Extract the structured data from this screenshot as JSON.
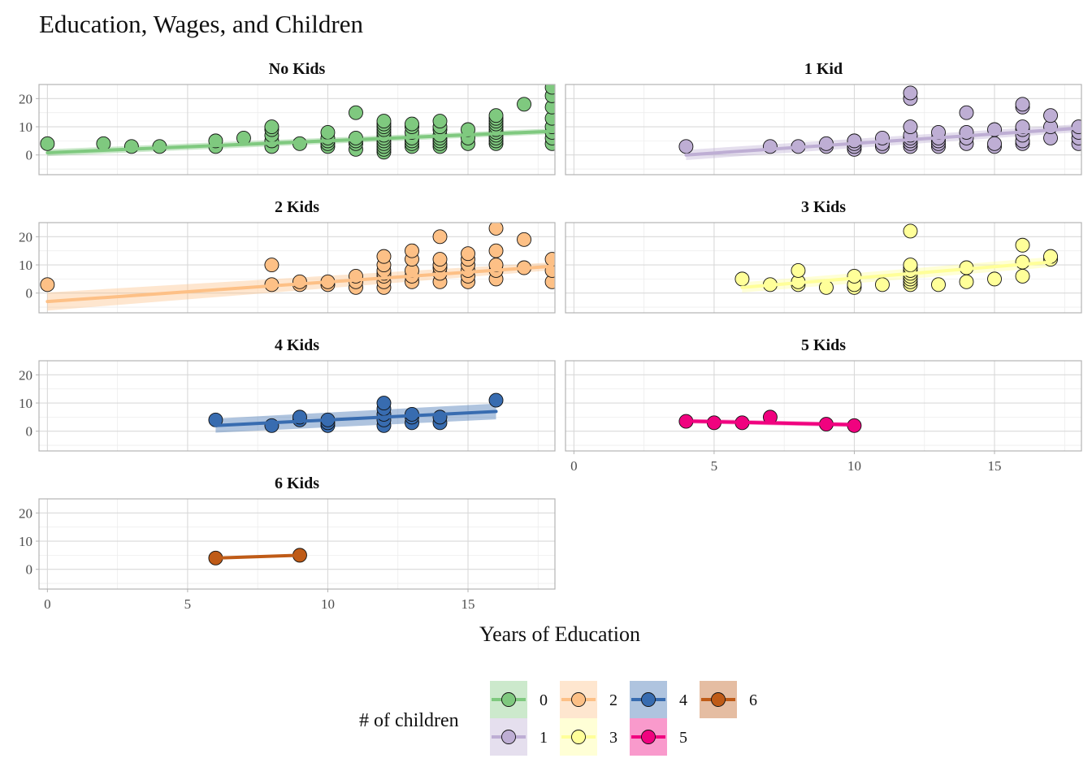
{
  "chart_data": {
    "type": "scatter",
    "title": "Education, Wages, and Children",
    "xlabel": "Years of Education",
    "ylabel": "",
    "xlim": [
      -0.3,
      18.1
    ],
    "ylim": [
      -7,
      25
    ],
    "xticks": [
      0,
      5,
      10,
      15
    ],
    "yticks": [
      0,
      10,
      20
    ],
    "grid": true,
    "legend": {
      "title": "# of children",
      "position": "bottom",
      "entries": [
        {
          "label": "0",
          "color": "#7fc97f"
        },
        {
          "label": "1",
          "color": "#beaed4"
        },
        {
          "label": "2",
          "color": "#fdc086"
        },
        {
          "label": "3",
          "color": "#ffff99"
        },
        {
          "label": "4",
          "color": "#386cb0"
        },
        {
          "label": "5",
          "color": "#f0027f"
        },
        {
          "label": "6",
          "color": "#bf5b17"
        }
      ]
    },
    "panels": [
      {
        "title": "No Kids",
        "kids": 0,
        "color": "#7fc97f",
        "fit": {
          "x": [
            0,
            18
          ],
          "y": [
            0.8,
            8.4
          ],
          "se": [
            1.2,
            1.0
          ]
        },
        "points": [
          [
            0,
            4
          ],
          [
            2,
            4
          ],
          [
            3,
            3
          ],
          [
            4,
            3
          ],
          [
            6,
            3
          ],
          [
            6,
            5
          ],
          [
            7,
            6
          ],
          [
            8,
            3
          ],
          [
            8,
            5
          ],
          [
            8,
            7
          ],
          [
            8,
            9
          ],
          [
            8,
            10
          ],
          [
            9,
            4
          ],
          [
            10,
            3
          ],
          [
            10,
            4
          ],
          [
            10,
            5
          ],
          [
            10,
            6
          ],
          [
            10,
            8
          ],
          [
            11,
            2
          ],
          [
            11,
            4
          ],
          [
            11,
            5
          ],
          [
            11,
            6
          ],
          [
            11,
            15
          ],
          [
            12,
            1
          ],
          [
            12,
            2
          ],
          [
            12,
            3
          ],
          [
            12,
            4
          ],
          [
            12,
            5
          ],
          [
            12,
            6
          ],
          [
            12,
            7
          ],
          [
            12,
            8
          ],
          [
            12,
            9
          ],
          [
            12,
            10
          ],
          [
            12,
            11
          ],
          [
            12,
            12
          ],
          [
            13,
            3
          ],
          [
            13,
            4
          ],
          [
            13,
            5
          ],
          [
            13,
            6
          ],
          [
            13,
            8
          ],
          [
            13,
            10
          ],
          [
            13,
            11
          ],
          [
            14,
            3
          ],
          [
            14,
            4
          ],
          [
            14,
            5
          ],
          [
            14,
            6
          ],
          [
            14,
            7
          ],
          [
            14,
            9
          ],
          [
            14,
            10
          ],
          [
            14,
            12
          ],
          [
            15,
            4
          ],
          [
            15,
            6
          ],
          [
            15,
            9
          ],
          [
            16,
            4
          ],
          [
            16,
            5
          ],
          [
            16,
            6
          ],
          [
            16,
            7
          ],
          [
            16,
            8
          ],
          [
            16,
            9
          ],
          [
            16,
            10
          ],
          [
            16,
            11
          ],
          [
            16,
            12
          ],
          [
            16,
            13
          ],
          [
            16,
            14
          ],
          [
            17,
            18
          ],
          [
            18,
            4
          ],
          [
            18,
            6
          ],
          [
            18,
            8
          ],
          [
            18,
            10
          ],
          [
            18,
            13
          ],
          [
            18,
            17
          ],
          [
            18,
            21
          ],
          [
            18,
            24
          ]
        ]
      },
      {
        "title": "1 Kid",
        "kids": 1,
        "color": "#beaed4",
        "fit": {
          "x": [
            4,
            18
          ],
          "y": [
            0,
            9.5
          ],
          "se": [
            1.8,
            1.4
          ]
        },
        "points": [
          [
            4,
            3
          ],
          [
            7,
            3
          ],
          [
            8,
            3
          ],
          [
            9,
            3
          ],
          [
            9,
            4
          ],
          [
            10,
            2
          ],
          [
            10,
            3
          ],
          [
            10,
            4
          ],
          [
            10,
            5
          ],
          [
            11,
            3
          ],
          [
            11,
            4
          ],
          [
            11,
            6
          ],
          [
            12,
            3
          ],
          [
            12,
            4
          ],
          [
            12,
            5
          ],
          [
            12,
            6
          ],
          [
            12,
            7
          ],
          [
            12,
            10
          ],
          [
            12,
            20
          ],
          [
            12,
            22
          ],
          [
            13,
            3
          ],
          [
            13,
            4
          ],
          [
            13,
            5
          ],
          [
            13,
            6
          ],
          [
            13,
            8
          ],
          [
            14,
            4
          ],
          [
            14,
            6
          ],
          [
            14,
            8
          ],
          [
            14,
            15
          ],
          [
            15,
            3
          ],
          [
            15,
            4
          ],
          [
            15,
            9
          ],
          [
            16,
            4
          ],
          [
            16,
            5
          ],
          [
            16,
            7
          ],
          [
            16,
            9
          ],
          [
            16,
            10
          ],
          [
            16,
            17
          ],
          [
            16,
            18
          ],
          [
            17,
            6
          ],
          [
            17,
            10
          ],
          [
            17,
            14
          ],
          [
            18,
            4
          ],
          [
            18,
            6
          ],
          [
            18,
            8
          ],
          [
            18,
            10
          ]
        ]
      },
      {
        "title": "2 Kids",
        "kids": 2,
        "color": "#fdc086",
        "fit": {
          "x": [
            0,
            18
          ],
          "y": [
            -3,
            9.5
          ],
          "se": [
            3.2,
            1.4
          ]
        },
        "points": [
          [
            0,
            3
          ],
          [
            8,
            3
          ],
          [
            8,
            10
          ],
          [
            9,
            3
          ],
          [
            9,
            4
          ],
          [
            10,
            3
          ],
          [
            10,
            4
          ],
          [
            11,
            2
          ],
          [
            11,
            4
          ],
          [
            11,
            6
          ],
          [
            12,
            2
          ],
          [
            12,
            4
          ],
          [
            12,
            6
          ],
          [
            12,
            7
          ],
          [
            12,
            8
          ],
          [
            12,
            10
          ],
          [
            12,
            13
          ],
          [
            13,
            4
          ],
          [
            13,
            6
          ],
          [
            13,
            8
          ],
          [
            13,
            12
          ],
          [
            13,
            15
          ],
          [
            14,
            4
          ],
          [
            14,
            7
          ],
          [
            14,
            9
          ],
          [
            14,
            10
          ],
          [
            14,
            12
          ],
          [
            14,
            20
          ],
          [
            15,
            4
          ],
          [
            15,
            6
          ],
          [
            15,
            8
          ],
          [
            15,
            10
          ],
          [
            15,
            12
          ],
          [
            15,
            14
          ],
          [
            16,
            5
          ],
          [
            16,
            8
          ],
          [
            16,
            10
          ],
          [
            16,
            15
          ],
          [
            16,
            23
          ],
          [
            17,
            9
          ],
          [
            17,
            19
          ],
          [
            18,
            4
          ],
          [
            18,
            8
          ],
          [
            18,
            12
          ]
        ]
      },
      {
        "title": "3 Kids",
        "kids": 3,
        "color": "#ffff99",
        "fit": {
          "x": [
            6,
            17
          ],
          "y": [
            2,
            11
          ],
          "se": [
            1.8,
            1.8
          ]
        },
        "points": [
          [
            6,
            5
          ],
          [
            7,
            3
          ],
          [
            8,
            3
          ],
          [
            8,
            4
          ],
          [
            8,
            8
          ],
          [
            9,
            2
          ],
          [
            10,
            2
          ],
          [
            10,
            3
          ],
          [
            10,
            6
          ],
          [
            11,
            3
          ],
          [
            12,
            3
          ],
          [
            12,
            4
          ],
          [
            12,
            5
          ],
          [
            12,
            6
          ],
          [
            12,
            7
          ],
          [
            12,
            8
          ],
          [
            12,
            9
          ],
          [
            12,
            10
          ],
          [
            12,
            22
          ],
          [
            13,
            3
          ],
          [
            14,
            4
          ],
          [
            14,
            9
          ],
          [
            15,
            5
          ],
          [
            16,
            6
          ],
          [
            16,
            11
          ],
          [
            16,
            17
          ],
          [
            17,
            12
          ],
          [
            17,
            13
          ]
        ]
      },
      {
        "title": "4 Kids",
        "kids": 4,
        "color": "#386cb0",
        "fit": {
          "x": [
            6,
            16
          ],
          "y": [
            2,
            7
          ],
          "se": [
            2.5,
            2.8
          ]
        },
        "points": [
          [
            6,
            4
          ],
          [
            8,
            2
          ],
          [
            9,
            4
          ],
          [
            9,
            5
          ],
          [
            10,
            2
          ],
          [
            10,
            3
          ],
          [
            10,
            4
          ],
          [
            12,
            2
          ],
          [
            12,
            4
          ],
          [
            12,
            6
          ],
          [
            12,
            8
          ],
          [
            12,
            10
          ],
          [
            13,
            3
          ],
          [
            13,
            5
          ],
          [
            13,
            6
          ],
          [
            14,
            3
          ],
          [
            14,
            5
          ],
          [
            16,
            11
          ]
        ]
      },
      {
        "title": "5 Kids",
        "kids": 5,
        "color": "#f0027f",
        "fit": {
          "x": [
            4,
            10
          ],
          "y": [
            3.6,
            2.3
          ],
          "se": [
            0.8,
            0.8
          ]
        },
        "points": [
          [
            4,
            3.5
          ],
          [
            5,
            3
          ],
          [
            6,
            3
          ],
          [
            7,
            5
          ],
          [
            9,
            2.5
          ],
          [
            10,
            2
          ]
        ]
      },
      {
        "title": "6 Kids",
        "kids": 6,
        "color": "#bf5b17",
        "fit": {
          "x": [
            6,
            9
          ],
          "y": [
            4,
            5
          ],
          "se": [
            0.2,
            0.2
          ]
        },
        "points": [
          [
            6,
            4
          ],
          [
            9,
            5
          ]
        ]
      }
    ]
  }
}
